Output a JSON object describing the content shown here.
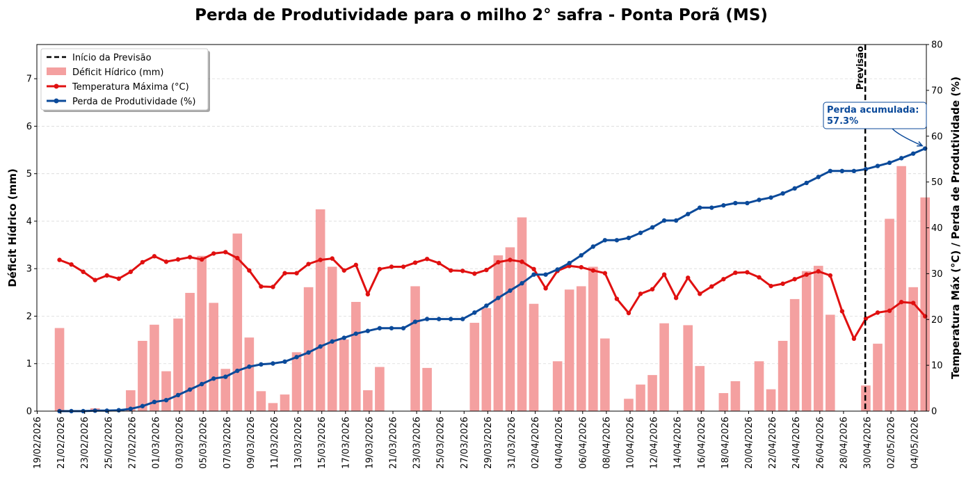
{
  "chart_data": {
    "type": "bar+line",
    "title": "Perda de Produtividade para o milho 2° safra - Ponta Porã (MS)",
    "ylabel_left": "Déficit Hídrico (mm)",
    "ylabel_right": "Temperatura Máx (°C) / Perda de Produtividade (%)",
    "ylim_left": [
      0,
      7.72
    ],
    "ylim_right": [
      0,
      80
    ],
    "yticks_left": [
      "0",
      "1",
      "2",
      "3",
      "4",
      "5",
      "6",
      "7"
    ],
    "yticks_right": [
      "0",
      "10",
      "20",
      "30",
      "40",
      "50",
      "60",
      "70",
      "80"
    ],
    "grid": "horizontal dashed",
    "legend_position": "upper-left",
    "legend": {
      "forecast": "Início da Previsão",
      "deficit": "Déficit Hídrico (mm)",
      "temp": "Temperatura Máxima (°C)",
      "loss": "Perda de Produtividade (%)"
    },
    "forecast_label": "Previsão",
    "forecast_date": "2026-04-29",
    "annotation": "Perda acumulada:\n57.3%",
    "start_date": "2026-02-19",
    "x_tick_labels": [
      "19/02/2026",
      "21/02/2026",
      "23/02/2026",
      "25/02/2026",
      "27/02/2026",
      "01/03/2026",
      "03/03/2026",
      "05/03/2026",
      "07/03/2026",
      "09/03/2026",
      "11/03/2026",
      "13/03/2026",
      "15/03/2026",
      "17/03/2026",
      "19/03/2026",
      "21/03/2026",
      "23/03/2026",
      "25/03/2026",
      "27/03/2026",
      "29/03/2026",
      "31/03/2026",
      "02/04/2026",
      "04/04/2026",
      "06/04/2026",
      "08/04/2026",
      "10/04/2026",
      "12/04/2026",
      "14/04/2026",
      "16/04/2026",
      "18/04/2026",
      "20/04/2026",
      "22/04/2026",
      "24/04/2026",
      "26/04/2026",
      "28/04/2026",
      "30/04/2026",
      "02/05/2026",
      "04/05/2026"
    ],
    "series": [
      {
        "name": "Déficit Hídrico (mm)",
        "axis": "left",
        "type": "bar",
        "color": "#f4a0a0",
        "x_start": "2026-02-20",
        "values": [
          1.75,
          0,
          0,
          0.06,
          0,
          0,
          0.44,
          1.48,
          1.82,
          0.84,
          1.95,
          2.49,
          3.27,
          2.28,
          0.89,
          3.74,
          1.55,
          0.42,
          0.17,
          0.35,
          1.24,
          2.61,
          4.25,
          3.04,
          1.51,
          2.3,
          0.44,
          0.93,
          0,
          0,
          2.63,
          0.91,
          0,
          0,
          0,
          1.86,
          2.17,
          3.28,
          3.45,
          4.08,
          2.26,
          0,
          1.05,
          2.56,
          2.63,
          3.04,
          1.53,
          0,
          0.26,
          0.56,
          0.76,
          1.85,
          0,
          1.81,
          0.95,
          0,
          0.38,
          0.63,
          0,
          1.05,
          0.46,
          1.48,
          2.36,
          2.95,
          3.06,
          2.03,
          0,
          0,
          0.54,
          1.42,
          4.05,
          5.16,
          2.61,
          4.5
        ]
      },
      {
        "name": "Temperatura Máxima (°C)",
        "axis": "right",
        "type": "line",
        "color": "#e01010",
        "x_start": "2026-02-20",
        "values": [
          33,
          32,
          30.4,
          28.6,
          29.6,
          28.9,
          30.4,
          32.5,
          33.8,
          32.6,
          33.1,
          33.6,
          33.1,
          34.4,
          34.7,
          33.4,
          30.7,
          27.2,
          27.1,
          30.1,
          30.1,
          32.1,
          33,
          33.3,
          30.7,
          31.9,
          25.5,
          31,
          31.5,
          31.5,
          32.4,
          33.2,
          32.3,
          30.7,
          30.6,
          30,
          30.8,
          32.5,
          33,
          32.6,
          31,
          26.8,
          30.6,
          31.7,
          31.4,
          30.7,
          30.1,
          24.5,
          21.4,
          25.6,
          26.6,
          29.8,
          24.7,
          29.1,
          25.6,
          27.2,
          28.8,
          30.2,
          30.3,
          29.2,
          27.3,
          27.8,
          28.8,
          29.8,
          30.5,
          29.6,
          21.8,
          15.8,
          20.2,
          21.5,
          21.9,
          23.8,
          23.6,
          20.7
        ]
      },
      {
        "name": "Perda de Produtividade (%)",
        "axis": "right",
        "type": "line",
        "color": "#0b4a9a",
        "x_start": "2026-02-20",
        "values": [
          0,
          0,
          0,
          0.1,
          0.1,
          0.2,
          0.5,
          1.1,
          2,
          2.4,
          3.5,
          4.7,
          5.9,
          7.1,
          7.5,
          8.8,
          9.7,
          10.2,
          10.4,
          10.8,
          11.8,
          12.8,
          14.1,
          15.2,
          16,
          16.9,
          17.5,
          18.1,
          18.1,
          18.1,
          19.5,
          20.1,
          20.1,
          20.1,
          20.1,
          21.5,
          23,
          24.7,
          26.3,
          27.9,
          29.8,
          29.8,
          30.9,
          32.3,
          34,
          35.9,
          37.3,
          37.3,
          37.8,
          38.9,
          40.1,
          41.6,
          41.6,
          43,
          44.4,
          44.4,
          44.9,
          45.4,
          45.4,
          46.1,
          46.6,
          47.5,
          48.6,
          49.8,
          51.1,
          52.4,
          52.4,
          52.4,
          52.8,
          53.5,
          54.2,
          55.2,
          56.2,
          57.3
        ]
      }
    ]
  }
}
